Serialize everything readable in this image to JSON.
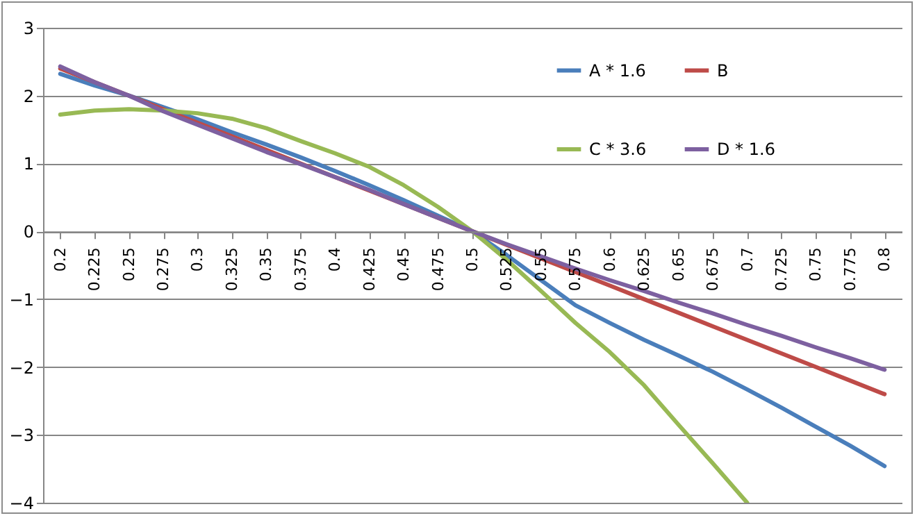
{
  "chart_data": {
    "type": "line",
    "categories": [
      "0.2",
      "0.225",
      "0.25",
      "0.275",
      "0.3",
      "0.325",
      "0.35",
      "0.375",
      "0.4",
      "0.425",
      "0.45",
      "0.475",
      "0.5",
      "0.525",
      "0.55",
      "0.575",
      "0.6",
      "0.625",
      "0.65",
      "0.675",
      "0.7",
      "0.725",
      "0.75",
      "0.775",
      "0.8"
    ],
    "series": [
      {
        "name": "A * 1.6",
        "color": "#4a7ebb",
        "values": [
          2.32,
          2.15,
          2.0,
          1.83,
          1.65,
          1.46,
          1.28,
          1.09,
          0.89,
          0.68,
          0.46,
          0.23,
          0,
          -0.35,
          -0.72,
          -1.09,
          -1.35,
          -1.6,
          -1.83,
          -2.07,
          -2.33,
          -2.6,
          -2.88,
          -3.16,
          -3.46
        ]
      },
      {
        "name": "B",
        "color": "#be4b48",
        "values": [
          2.4,
          2.2,
          2.0,
          1.8,
          1.6,
          1.4,
          1.2,
          1.0,
          0.8,
          0.6,
          0.4,
          0.2,
          0,
          -0.2,
          -0.4,
          -0.6,
          -0.8,
          -1.0,
          -1.2,
          -1.4,
          -1.6,
          -1.8,
          -2.0,
          -2.2,
          -2.4
        ]
      },
      {
        "name": "C * 3.6",
        "color": "#98b954",
        "values": [
          1.72,
          1.78,
          1.8,
          1.78,
          1.74,
          1.66,
          1.52,
          1.33,
          1.15,
          0.95,
          0.68,
          0.36,
          0,
          -0.42,
          -0.88,
          -1.35,
          -1.78,
          -2.27,
          -2.85,
          -3.42,
          -4.0,
          null,
          null,
          null,
          null
        ]
      },
      {
        "name": "D * 1.6",
        "color": "#7d60a0",
        "values": [
          2.43,
          2.2,
          2.0,
          1.77,
          1.57,
          1.37,
          1.17,
          0.99,
          0.8,
          0.61,
          0.4,
          0.2,
          0,
          -0.19,
          -0.37,
          -0.55,
          -0.72,
          -0.88,
          -1.05,
          -1.21,
          -1.38,
          -1.54,
          -1.71,
          -1.87,
          -2.04
        ]
      }
    ],
    "ylim": [
      -4,
      3
    ],
    "yticks": [
      -4,
      -3,
      -2,
      -1,
      0,
      1,
      2,
      3
    ],
    "grid": "y",
    "legend": "top right",
    "marker": "none",
    "line_style": "solid"
  }
}
